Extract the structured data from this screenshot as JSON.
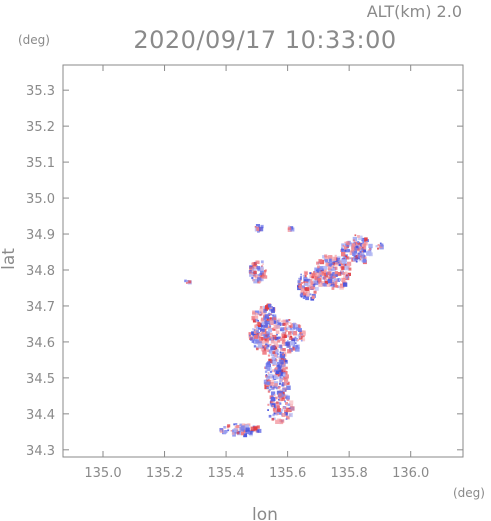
{
  "header": {
    "altitude_label": "ALT(km)  2.0",
    "datetime": "2020/09/17 10:33:00",
    "lat_unit": "(deg)",
    "lon_unit": "(deg)"
  },
  "chart_data": {
    "type": "heatmap",
    "title": "2020/09/17 10:33:00",
    "xlabel": "lon",
    "ylabel": "lat",
    "x_unit": "(deg)",
    "y_unit": "(deg)",
    "xlim": [
      134.87,
      136.17
    ],
    "ylim": [
      34.28,
      35.37
    ],
    "x_ticks": [
      "135.0",
      "135.2",
      "135.4",
      "135.6",
      "135.8",
      "136.0"
    ],
    "x_tick_values": [
      135.0,
      135.2,
      135.4,
      135.6,
      135.8,
      136.0
    ],
    "y_ticks": [
      "34.3",
      "34.4",
      "34.5",
      "34.6",
      "34.7",
      "34.8",
      "34.9",
      "35.0",
      "35.1",
      "35.2",
      "35.3"
    ],
    "y_tick_values": [
      34.3,
      34.4,
      34.5,
      34.6,
      34.7,
      34.8,
      34.9,
      35.0,
      35.1,
      35.2,
      35.3
    ],
    "grid": false,
    "colors": {
      "positive": "#e0454f",
      "negative": "#4050d8",
      "axis": "#8a8a8a"
    },
    "echo_regions": [
      {
        "lon": 135.56,
        "lat": 34.62,
        "d_lon": 0.09,
        "d_lat": 0.05
      },
      {
        "lon": 135.56,
        "lat": 34.51,
        "d_lon": 0.04,
        "d_lat": 0.07
      },
      {
        "lon": 135.57,
        "lat": 34.42,
        "d_lon": 0.04,
        "d_lat": 0.04
      },
      {
        "lon": 135.52,
        "lat": 34.68,
        "d_lon": 0.04,
        "d_lat": 0.03
      },
      {
        "lon": 135.74,
        "lat": 34.8,
        "d_lon": 0.06,
        "d_lat": 0.05
      },
      {
        "lon": 135.82,
        "lat": 34.86,
        "d_lon": 0.05,
        "d_lat": 0.04
      },
      {
        "lon": 135.66,
        "lat": 34.76,
        "d_lon": 0.03,
        "d_lat": 0.04
      },
      {
        "lon": 135.9,
        "lat": 34.87,
        "d_lon": 0.015,
        "d_lat": 0.01
      },
      {
        "lon": 135.5,
        "lat": 34.8,
        "d_lon": 0.03,
        "d_lat": 0.03
      },
      {
        "lon": 135.5,
        "lat": 34.92,
        "d_lon": 0.02,
        "d_lat": 0.01
      },
      {
        "lon": 135.6,
        "lat": 34.92,
        "d_lon": 0.01,
        "d_lat": 0.005
      },
      {
        "lon": 135.44,
        "lat": 34.36,
        "d_lon": 0.07,
        "d_lat": 0.015
      },
      {
        "lon": 135.27,
        "lat": 34.77,
        "d_lon": 0.01,
        "d_lat": 0.005
      }
    ]
  }
}
